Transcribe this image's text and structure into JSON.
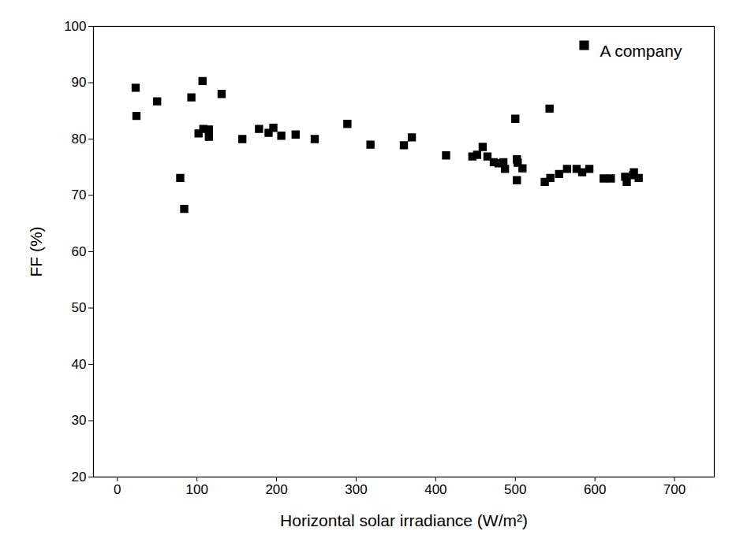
{
  "chart_data": {
    "type": "scatter",
    "x_label": "Horizontal solar irradiance (W/m²)",
    "y_label": "FF (%)",
    "xlim": [
      -30,
      750
    ],
    "ylim": [
      20,
      100
    ],
    "xticks": [
      0,
      100,
      200,
      300,
      400,
      500,
      600,
      700
    ],
    "yticks": [
      20,
      30,
      40,
      50,
      60,
      70,
      80,
      90,
      100
    ],
    "grid": false,
    "legend": "top-right",
    "series": [
      {
        "name": "A company",
        "color": "#000000",
        "marker": "square",
        "x": [
          23,
          24,
          50,
          79,
          84,
          93,
          107,
          102,
          108,
          115,
          115,
          131,
          157,
          178,
          190,
          196,
          206,
          224,
          248,
          289,
          318,
          360,
          370,
          413,
          446,
          452,
          459,
          465,
          473,
          479,
          485,
          487,
          500,
          502,
          503,
          502,
          509,
          543,
          537,
          544,
          555,
          565,
          577,
          584,
          593,
          611,
          620,
          638,
          640,
          649,
          655,
          648
        ],
        "values": [
          89.1,
          84.1,
          86.7,
          73.1,
          67.6,
          87.4,
          90.3,
          81.0,
          81.8,
          81.7,
          80.4,
          88.0,
          80.0,
          81.8,
          81.1,
          82.0,
          80.6,
          80.8,
          80.0,
          82.7,
          79.0,
          78.9,
          80.3,
          77.1,
          76.9,
          77.2,
          78.6,
          76.9,
          75.9,
          75.7,
          75.9,
          74.7,
          83.6,
          76.4,
          75.8,
          72.7,
          74.8,
          85.4,
          72.4,
          73.1,
          73.8,
          74.7,
          74.7,
          74.1,
          74.7,
          73.0,
          73.0,
          73.3,
          72.4,
          74.1,
          73.1,
          73.6
        ]
      }
    ]
  }
}
